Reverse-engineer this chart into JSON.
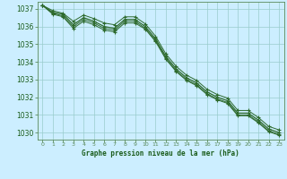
{
  "title": "Graphe pression niveau de la mer (hPa)",
  "hours": [
    0,
    1,
    2,
    3,
    4,
    5,
    6,
    7,
    8,
    9,
    10,
    11,
    12,
    13,
    14,
    15,
    16,
    17,
    18,
    19,
    20,
    21,
    22,
    23
  ],
  "series_main": [
    1037.2,
    1036.8,
    1036.7,
    1036.1,
    1036.5,
    1036.3,
    1036.0,
    1035.9,
    1036.4,
    1036.4,
    1036.0,
    1035.3,
    1034.3,
    1033.6,
    1033.1,
    1032.8,
    1032.3,
    1032.0,
    1031.8,
    1031.1,
    1031.1,
    1030.7,
    1030.2,
    1030.0
  ],
  "series_upper": [
    1037.2,
    1036.9,
    1036.75,
    1036.3,
    1036.65,
    1036.45,
    1036.2,
    1036.1,
    1036.55,
    1036.55,
    1036.15,
    1035.45,
    1034.45,
    1033.75,
    1033.25,
    1032.95,
    1032.45,
    1032.15,
    1031.95,
    1031.25,
    1031.25,
    1030.85,
    1030.35,
    1030.15
  ],
  "series_lower": [
    1037.2,
    1036.7,
    1036.55,
    1035.9,
    1036.3,
    1036.1,
    1035.8,
    1035.7,
    1036.2,
    1036.2,
    1035.85,
    1035.15,
    1034.15,
    1033.45,
    1032.95,
    1032.65,
    1032.15,
    1031.85,
    1031.65,
    1030.95,
    1030.95,
    1030.55,
    1030.05,
    1029.85
  ],
  "series_extra": [
    1037.2,
    1036.75,
    1036.6,
    1036.0,
    1036.4,
    1036.2,
    1035.9,
    1035.8,
    1036.3,
    1036.3,
    1035.9,
    1035.2,
    1034.2,
    1033.5,
    1033.0,
    1032.7,
    1032.2,
    1031.9,
    1031.7,
    1031.0,
    1031.0,
    1030.6,
    1030.1,
    1029.9
  ],
  "ylim": [
    1029.6,
    1037.4
  ],
  "yticks": [
    1030,
    1031,
    1032,
    1033,
    1034,
    1035,
    1036,
    1037
  ],
  "line_color": "#2d6a2d",
  "bg_color": "#cceeff",
  "grid_color": "#99cccc",
  "label_color": "#1a5c1a",
  "tick_label_color": "#1a5c1a",
  "spine_color": "#5a8a5a"
}
